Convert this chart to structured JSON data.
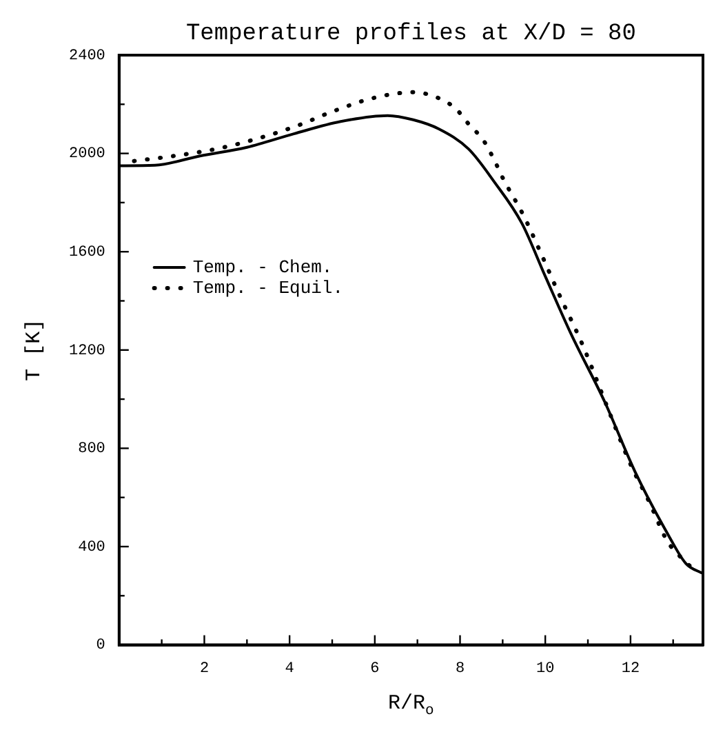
{
  "chart_data": {
    "type": "line",
    "title": "Temperature profiles at X/D = 80",
    "xlabel": "R/R$_{o}$",
    "ylabel": "T [K]",
    "xlim": [
      0,
      13.7
    ],
    "xticks": [
      {
        "value": 0,
        "label": null
      },
      {
        "value": 1,
        "label": null
      },
      2,
      {
        "value": 3,
        "label": null
      },
      4,
      {
        "value": 5,
        "label": null
      },
      6,
      {
        "value": 7,
        "label": null
      },
      8,
      {
        "value": 9,
        "label": null
      },
      10,
      {
        "value": 11,
        "label": null
      },
      12,
      {
        "value": 13,
        "label": null
      }
    ],
    "ylim": [
      0,
      2400
    ],
    "yticks": [
      0,
      {
        "value": 200,
        "label": null
      },
      400,
      {
        "value": 600,
        "label": null
      },
      800,
      {
        "value": 1000,
        "label": null
      },
      1200,
      {
        "value": 1400,
        "label": null
      },
      1600,
      {
        "value": 1800,
        "label": null
      },
      2000,
      {
        "value": 2200,
        "label": null
      },
      2400
    ],
    "grid": false,
    "legend": "left",
    "series": [
      {
        "name": "Temp. - Chem.",
        "color": "#000000",
        "line_style": "solid",
        "x": [
          0,
          0.84,
          1.9,
          3.0,
          4.1,
          5.2,
          6.3,
          6.9,
          7.5,
          8.2,
          8.8,
          9.45,
          10.0,
          10.6,
          11.4,
          12.1,
          12.9,
          13.3,
          13.7
        ],
        "values": [
          1950,
          1952,
          1990,
          2025,
          2080,
          2130,
          2154,
          2137,
          2100,
          2018,
          1885,
          1716,
          1500,
          1267,
          987,
          707,
          443,
          331,
          290
        ]
      },
      {
        "name": "Temp. - Equil.",
        "color": "#000000",
        "line_style": "dotted",
        "x": [
          0.35,
          1.3,
          2.3,
          3.2,
          4.2,
          5.0,
          6.0,
          6.9,
          7.4,
          7.9,
          8.2,
          8.55,
          8.8,
          9.0,
          9.5,
          9.9,
          10.3,
          10.9,
          11.45,
          12.0,
          12.45,
          12.85,
          13.2,
          13.55
        ],
        "values": [
          1969,
          1990,
          2019,
          2058,
          2114,
          2170,
          2227,
          2249,
          2232,
          2182,
          2120,
          2053,
          1974,
          1901,
          1744,
          1593,
          1436,
          1211,
          970,
          735,
          578,
          426,
          353,
          297
        ]
      }
    ]
  }
}
